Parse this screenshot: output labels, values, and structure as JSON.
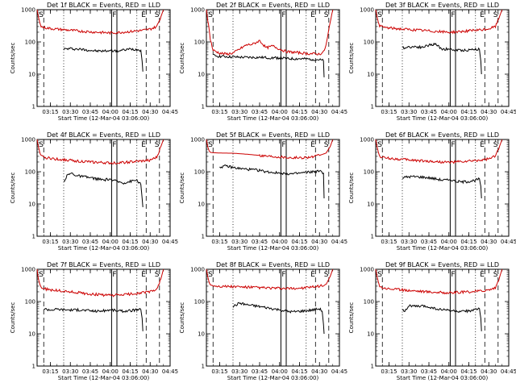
{
  "chart_data": {
    "type": "line",
    "layout": "3x3 grid",
    "x_tick_labels": [
      "03:15",
      "03:30",
      "03:45",
      "04:00",
      "04:15",
      "04:30",
      "04:45"
    ],
    "x_range_minutes": [
      0,
      100
    ],
    "x_tick_minutes": [
      10,
      25,
      40,
      55,
      70,
      85,
      100
    ],
    "y_scale": "log",
    "ylim": [
      1,
      1000
    ],
    "y_tick_labels": [
      "1",
      "10",
      "100",
      "1000"
    ],
    "ylabel": "Counts/sec",
    "xlabel": "Start Time (12-Mar-04 03:06:00)",
    "legend": "BLACK = Events, RED = LLD",
    "solid_marker_minutes": [
      56,
      60
    ],
    "solid_marker_label": "F",
    "dashed_marker_minutes": [
      5,
      82,
      92
    ],
    "dashed_marker_labels": [
      "S",
      "E",
      "S"
    ],
    "dotted_marker_minutes": [
      20,
      75
    ],
    "panels": [
      {
        "title": "Det 1f BLACK = Events, RED = LLD",
        "series": [
          {
            "name": "Events",
            "color": "#000000",
            "x": [
              20,
              25,
              30,
              35,
              40,
              45,
              50,
              55,
              56,
              60,
              65,
              70,
              75,
              78,
              79,
              79.5
            ],
            "y": [
              60,
              62,
              60,
              58,
              55,
              52,
              52,
              54,
              55,
              52,
              56,
              60,
              58,
              55,
              25,
              12
            ]
          },
          {
            "name": "LLD",
            "color": "#cc0000",
            "x": [
              0,
              1,
              2,
              3,
              5,
              10,
              15,
              20,
              30,
              40,
              50,
              56,
              60,
              70,
              80,
              85,
              90,
              93,
              95
            ],
            "y": [
              1000,
              600,
              400,
              300,
              280,
              260,
              250,
              240,
              220,
              205,
              195,
              190,
              195,
              210,
              230,
              250,
              300,
              600,
              1000
            ]
          }
        ]
      },
      {
        "title": "Det 2f BLACK = Events, RED = LLD",
        "series": [
          {
            "name": "Events",
            "color": "#000000",
            "x": [
              5,
              10,
              20,
              30,
              40,
              50,
              56,
              60,
              70,
              80,
              85,
              88,
              88.5
            ],
            "y": [
              38,
              36,
              34,
              33,
              33,
              32,
              32,
              30,
              30,
              29,
              28,
              26,
              8
            ]
          },
          {
            "name": "LLD",
            "color": "#cc0000",
            "x": [
              0,
              1,
              3,
              5,
              10,
              15,
              20,
              25,
              30,
              35,
              40,
              45,
              50,
              55,
              60,
              65,
              70,
              75,
              80,
              85,
              88,
              90,
              93,
              95
            ],
            "y": [
              1000,
              500,
              120,
              55,
              45,
              42,
              45,
              60,
              80,
              85,
              110,
              65,
              75,
              60,
              50,
              48,
              46,
              44,
              43,
              42,
              48,
              80,
              400,
              1000
            ]
          }
        ]
      },
      {
        "title": "Det 3f BLACK = Events, RED = LLD",
        "series": [
          {
            "name": "Events",
            "color": "#000000",
            "x": [
              20,
              25,
              30,
              35,
              40,
              45,
              50,
              55,
              56,
              60,
              65,
              70,
              75,
              78,
              79,
              79.5
            ],
            "y": [
              65,
              70,
              72,
              68,
              80,
              85,
              60,
              60,
              58,
              55,
              55,
              56,
              60,
              58,
              25,
              10
            ]
          },
          {
            "name": "LLD",
            "color": "#cc0000",
            "x": [
              0,
              1,
              2,
              3,
              5,
              10,
              15,
              20,
              30,
              40,
              50,
              56,
              60,
              70,
              80,
              85,
              90,
              93,
              95
            ],
            "y": [
              1000,
              600,
              400,
              320,
              290,
              270,
              260,
              250,
              235,
              220,
              205,
              200,
              205,
              220,
              235,
              255,
              300,
              600,
              1000
            ]
          }
        ]
      },
      {
        "title": "Det 4f BLACK = Events, RED = LLD",
        "series": [
          {
            "name": "Events",
            "color": "#000000",
            "x": [
              20,
              23,
              26,
              30,
              35,
              40,
              45,
              50,
              55,
              56,
              60,
              65,
              70,
              75,
              78,
              79,
              79.5
            ],
            "y": [
              50,
              80,
              90,
              75,
              70,
              65,
              60,
              55,
              60,
              55,
              50,
              45,
              50,
              55,
              40,
              15,
              8
            ]
          },
          {
            "name": "LLD",
            "color": "#cc0000",
            "x": [
              0,
              1,
              2,
              3,
              5,
              10,
              15,
              20,
              30,
              40,
              50,
              56,
              60,
              70,
              80,
              85,
              90,
              93,
              95
            ],
            "y": [
              1000,
              600,
              400,
              300,
              280,
              260,
              245,
              235,
              215,
              200,
              190,
              185,
              190,
              200,
              215,
              230,
              280,
              600,
              1000
            ]
          }
        ]
      },
      {
        "title": "Det 5f BLACK = Events, RED = LLD",
        "series": [
          {
            "name": "Events",
            "color": "#000000",
            "x": [
              10,
              15,
              20,
              25,
              30,
              35,
              40,
              45,
              50,
              55,
              56,
              60,
              65,
              70,
              75,
              80,
              85,
              88,
              88.5
            ],
            "y": [
              140,
              150,
              135,
              125,
              120,
              115,
              110,
              100,
              95,
              90,
              90,
              88,
              85,
              90,
              95,
              100,
              105,
              90,
              15
            ]
          },
          {
            "name": "LLD",
            "color": "#cc0000",
            "x": [
              0,
              1,
              2,
              3,
              5,
              10,
              20,
              30,
              40,
              50,
              56,
              60,
              70,
              80,
              85,
              90,
              93,
              95
            ],
            "y": [
              1000,
              600,
              450,
              400,
              390,
              380,
              375,
              350,
              320,
              300,
              290,
              280,
              270,
              290,
              320,
              380,
              600,
              1000
            ]
          }
        ]
      },
      {
        "title": "Det 6f BLACK = Events, RED = LLD",
        "series": [
          {
            "name": "Events",
            "color": "#000000",
            "x": [
              20,
              25,
              30,
              35,
              40,
              45,
              50,
              55,
              56,
              60,
              65,
              70,
              75,
              78,
              79,
              79.5
            ],
            "y": [
              65,
              70,
              70,
              68,
              65,
              60,
              55,
              55,
              58,
              50,
              48,
              50,
              55,
              60,
              35,
              15
            ]
          },
          {
            "name": "LLD",
            "color": "#cc0000",
            "x": [
              0,
              1,
              2,
              3,
              5,
              10,
              15,
              20,
              30,
              40,
              50,
              56,
              60,
              70,
              80,
              85,
              90,
              93,
              95
            ],
            "y": [
              1000,
              600,
              400,
              300,
              280,
              260,
              250,
              240,
              225,
              210,
              200,
              195,
              200,
              210,
              230,
              250,
              300,
              600,
              1000
            ]
          }
        ]
      },
      {
        "title": "Det 7f BLACK = Events, RED = LLD",
        "series": [
          {
            "name": "Events",
            "color": "#000000",
            "x": [
              5,
              10,
              15,
              20,
              25,
              30,
              35,
              40,
              45,
              50,
              55,
              56,
              60,
              65,
              70,
              75,
              78,
              79,
              79.5
            ],
            "y": [
              60,
              55,
              58,
              56,
              55,
              55,
              54,
              52,
              50,
              52,
              55,
              55,
              52,
              50,
              52,
              55,
              56,
              30,
              12
            ]
          },
          {
            "name": "LLD",
            "color": "#cc0000",
            "x": [
              0,
              1,
              2,
              3,
              5,
              10,
              20,
              30,
              40,
              50,
              56,
              60,
              70,
              80,
              85,
              90,
              93,
              95
            ],
            "y": [
              1000,
              500,
              350,
              280,
              250,
              230,
              210,
              190,
              170,
              160,
              155,
              158,
              170,
              190,
              200,
              240,
              500,
              1000
            ]
          }
        ]
      },
      {
        "title": "Det 8f BLACK = Events, RED = LLD",
        "series": [
          {
            "name": "Events",
            "color": "#000000",
            "x": [
              20,
              25,
              30,
              35,
              40,
              45,
              50,
              55,
              56,
              60,
              65,
              70,
              75,
              80,
              85,
              87,
              88,
              88.5
            ],
            "y": [
              70,
              90,
              80,
              75,
              70,
              65,
              60,
              55,
              55,
              50,
              48,
              50,
              52,
              55,
              60,
              50,
              20,
              10
            ]
          },
          {
            "name": "LLD",
            "color": "#cc0000",
            "x": [
              0,
              1,
              2,
              3,
              5,
              10,
              20,
              30,
              40,
              50,
              56,
              60,
              70,
              80,
              85,
              90,
              93,
              95
            ],
            "y": [
              1000,
              600,
              400,
              330,
              310,
              300,
              290,
              280,
              270,
              260,
              255,
              250,
              260,
              280,
              300,
              340,
              600,
              1000
            ]
          }
        ]
      },
      {
        "title": "Det 9f BLACK = Events, RED = LLD",
        "series": [
          {
            "name": "Events",
            "color": "#000000",
            "x": [
              20,
              22,
              25,
              30,
              35,
              40,
              45,
              50,
              55,
              56,
              60,
              65,
              70,
              75,
              78,
              79,
              79.5
            ],
            "y": [
              60,
              50,
              75,
              70,
              72,
              68,
              60,
              55,
              55,
              52,
              50,
              48,
              52,
              55,
              60,
              30,
              12
            ]
          },
          {
            "name": "LLD",
            "color": "#cc0000",
            "x": [
              0,
              1,
              2,
              3,
              5,
              10,
              20,
              30,
              40,
              50,
              56,
              60,
              70,
              80,
              85,
              90,
              93,
              95
            ],
            "y": [
              1000,
              600,
              400,
              300,
              270,
              250,
              230,
              215,
              200,
              190,
              185,
              190,
              200,
              215,
              230,
              270,
              550,
              1000
            ]
          }
        ]
      }
    ]
  }
}
